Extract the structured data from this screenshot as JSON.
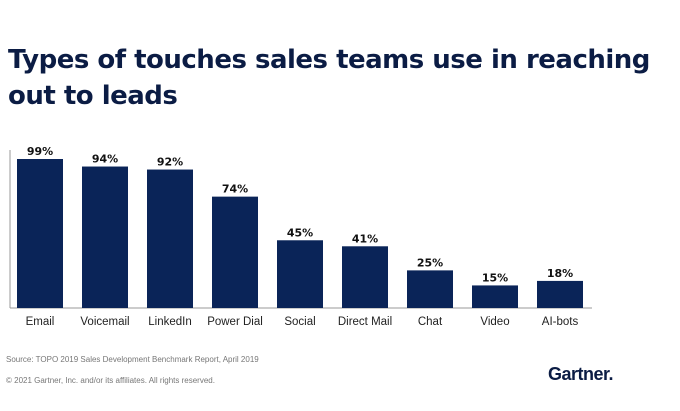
{
  "chart_data": {
    "type": "bar",
    "title": "Types of touches sales teams use in reaching out to leads",
    "categories": [
      "Email",
      "Voicemail",
      "LinkedIn",
      "Power Dial",
      "Social",
      "Direct Mail",
      "Chat",
      "Video",
      "AI-bots"
    ],
    "values": [
      99,
      94,
      92,
      74,
      45,
      41,
      25,
      15,
      18
    ],
    "data_labels": [
      "99%",
      "94%",
      "92%",
      "74%",
      "45%",
      "41%",
      "25%",
      "15%",
      "18%"
    ],
    "ylim": [
      0,
      100
    ],
    "grid": false,
    "bar_color": "#0a2458"
  },
  "source": "Source: TOPO 2019 Sales Development Benchmark Report, April 2019",
  "copyright": "© 2021 Gartner, Inc. and/or its affiliates. All rights reserved.",
  "logo": "Gartner."
}
